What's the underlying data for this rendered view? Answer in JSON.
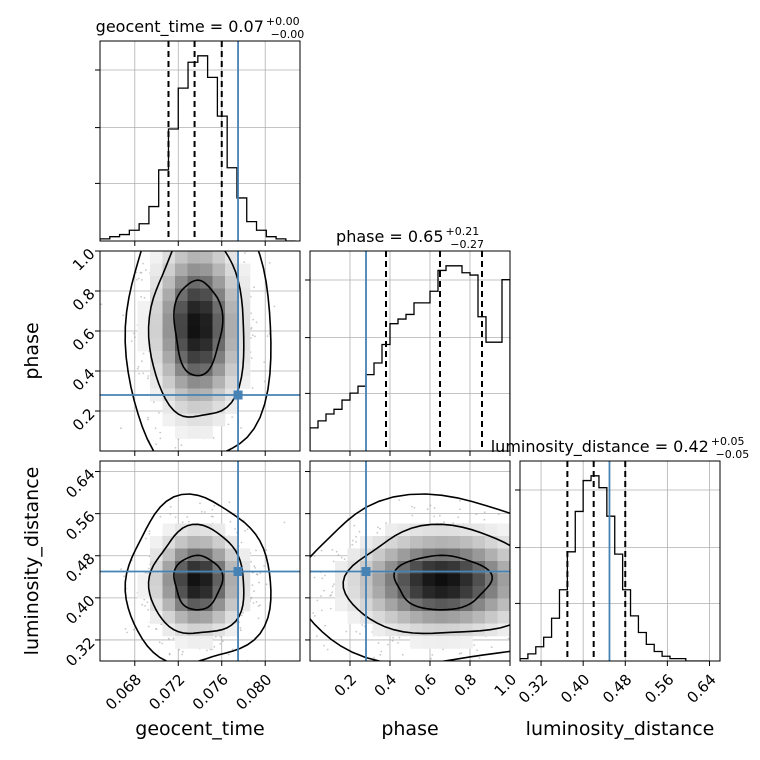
{
  "chart_data": {
    "type": "corner",
    "colors": {
      "truth": "#4682b4",
      "contour": "#000000",
      "grid": "#b0b0b0",
      "samples": "#9a9a9a"
    },
    "parameters": [
      {
        "name": "geocent_time",
        "axis_label": "geocent_time",
        "title_prefix": "geocent_time = 0.07",
        "err_plus": "+0.00",
        "err_minus": "−0.00",
        "range": [
          0.0648,
          0.0832
        ],
        "ticks": [
          "0.068",
          "0.072",
          "0.076",
          "0.080"
        ],
        "tick_values": [
          0.068,
          0.072,
          0.076,
          0.08
        ],
        "truth": 0.0775,
        "quantiles": [
          0.0711,
          0.0735,
          0.076
        ]
      },
      {
        "name": "phase",
        "axis_label": "phase",
        "title_prefix": "phase = 0.65",
        "err_plus": "+0.21",
        "err_minus": "−0.27",
        "range": [
          0.0,
          1.0
        ],
        "ticks": [
          "0.2",
          "0.4",
          "0.6",
          "0.8",
          "1.0"
        ],
        "tick_values": [
          0.2,
          0.4,
          0.6,
          0.8,
          1.0
        ],
        "truth": 0.28,
        "quantiles": [
          0.38,
          0.65,
          0.86
        ]
      },
      {
        "name": "luminosity_distance",
        "axis_label": "luminosity_distance",
        "title_prefix": "luminosity_distance = 0.42",
        "err_plus": "+0.05",
        "err_minus": "−0.05",
        "range": [
          0.28,
          0.66
        ],
        "ticks": [
          "0.32",
          "0.40",
          "0.48",
          "0.56",
          "0.64"
        ],
        "tick_values": [
          0.32,
          0.4,
          0.48,
          0.56,
          0.64
        ],
        "truth": 0.45,
        "quantiles": [
          0.37,
          0.42,
          0.48
        ]
      }
    ],
    "histograms": [
      {
        "param": "geocent_time",
        "bin_edges": [
          0.0648,
          0.0657,
          0.0666,
          0.0675,
          0.0684,
          0.0693,
          0.0702,
          0.0711,
          0.072,
          0.0729,
          0.0738,
          0.0747,
          0.0756,
          0.0765,
          0.0774,
          0.0783,
          0.0792,
          0.0801,
          0.081,
          0.0819,
          0.0828
        ],
        "counts": [
          1,
          2,
          3,
          5,
          8,
          16,
          33,
          52,
          71,
          83,
          86,
          76,
          58,
          34,
          20,
          9,
          5,
          2,
          1,
          0
        ]
      },
      {
        "param": "phase",
        "bin_edges": [
          0.0,
          0.04,
          0.08,
          0.12,
          0.16,
          0.2,
          0.24,
          0.28,
          0.32,
          0.36,
          0.4,
          0.44,
          0.48,
          0.52,
          0.56,
          0.6,
          0.64,
          0.68,
          0.72,
          0.76,
          0.8,
          0.84,
          0.88,
          0.92,
          0.96,
          1.0
        ],
        "counts": [
          10,
          13,
          16,
          18,
          22,
          25,
          28,
          33,
          38,
          46,
          55,
          57,
          59,
          64,
          64,
          69,
          78,
          80,
          80,
          77,
          76,
          58,
          47,
          47,
          74
        ]
      },
      {
        "param": "luminosity_distance",
        "bin_edges": [
          0.28,
          0.295,
          0.31,
          0.325,
          0.34,
          0.355,
          0.37,
          0.385,
          0.4,
          0.415,
          0.43,
          0.445,
          0.46,
          0.475,
          0.49,
          0.505,
          0.52,
          0.535,
          0.55,
          0.565,
          0.58,
          0.595,
          0.61,
          0.625,
          0.64
        ],
        "counts": [
          1,
          3,
          6,
          10,
          18,
          30,
          46,
          63,
          76,
          78,
          73,
          61,
          45,
          30,
          19,
          12,
          7,
          4,
          2,
          1,
          1,
          0,
          0,
          0
        ]
      }
    ],
    "panels_2d": [
      {
        "x": "geocent_time",
        "y": "phase",
        "mean": [
          0.0738,
          0.62
        ],
        "sigma": [
          0.0022,
          0.24
        ],
        "rho": 0.0,
        "contour_levels": [
          0.39,
          0.86,
          0.99
        ]
      },
      {
        "x": "geocent_time",
        "y": "luminosity_distance",
        "mean": [
          0.0738,
          0.43
        ],
        "sigma": [
          0.0022,
          0.052
        ],
        "rho": 0.0,
        "contour_levels": [
          0.39,
          0.86,
          0.99
        ]
      },
      {
        "x": "phase",
        "y": "luminosity_distance",
        "mean": [
          0.66,
          0.43
        ],
        "sigma": [
          0.24,
          0.052
        ],
        "rho": 0.0,
        "contour_levels": [
          0.39,
          0.86,
          0.99
        ]
      }
    ]
  }
}
